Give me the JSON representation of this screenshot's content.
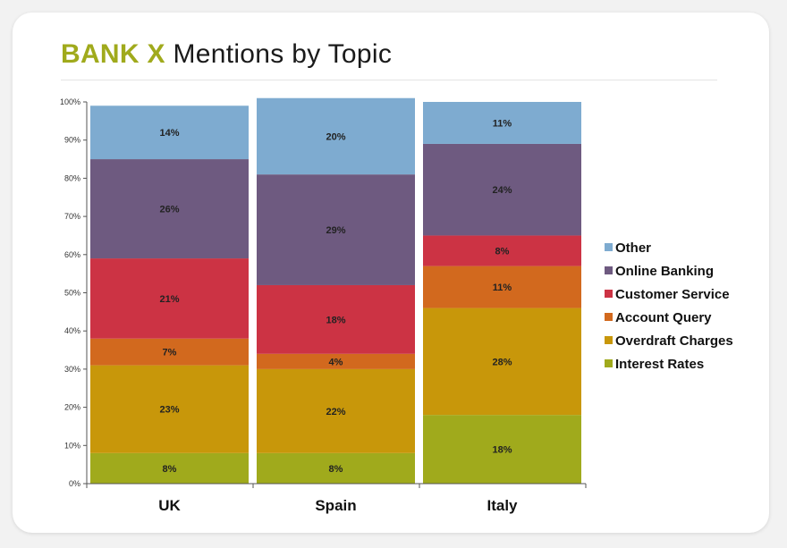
{
  "header": {
    "brand": "BANK X",
    "title_rest": "Mentions by Topic"
  },
  "chart_data": {
    "type": "bar",
    "stacked": true,
    "percent_stacked": true,
    "title": "BANK X Mentions by Topic",
    "categories": [
      "UK",
      "Spain",
      "Italy"
    ],
    "ylim": [
      0,
      100
    ],
    "yticks": [
      0,
      10,
      20,
      30,
      40,
      50,
      60,
      70,
      80,
      90,
      100
    ],
    "ytick_labels": [
      "0%",
      "10%",
      "20%",
      "30%",
      "40%",
      "50%",
      "60%",
      "70%",
      "80%",
      "90%",
      "100%"
    ],
    "grid": false,
    "legend_position": "right",
    "series": [
      {
        "name": "Interest Rates",
        "color": "#a0aa1c",
        "values": [
          8,
          8,
          18
        ],
        "labels": [
          "8%",
          "8%",
          "18%"
        ]
      },
      {
        "name": "Overdraft Charges",
        "color": "#c8970a",
        "values": [
          23,
          22,
          28
        ],
        "labels": [
          "23%",
          "22%",
          "28%"
        ]
      },
      {
        "name": "Account Query",
        "color": "#d2691e",
        "values": [
          7,
          4,
          11
        ],
        "labels": [
          "7%",
          "4%",
          "11%"
        ]
      },
      {
        "name": "Customer Service",
        "color": "#cc3344",
        "values": [
          21,
          18,
          8
        ],
        "labels": [
          "21%",
          "18%",
          "8%"
        ]
      },
      {
        "name": "Online Banking",
        "color": "#6e5a80",
        "values": [
          26,
          29,
          24
        ],
        "labels": [
          "26%",
          "29%",
          "24%"
        ]
      },
      {
        "name": "Other",
        "color": "#7eabd0",
        "values": [
          14,
          20,
          11
        ],
        "labels": [
          "14%",
          "20%",
          "11%"
        ]
      }
    ]
  }
}
